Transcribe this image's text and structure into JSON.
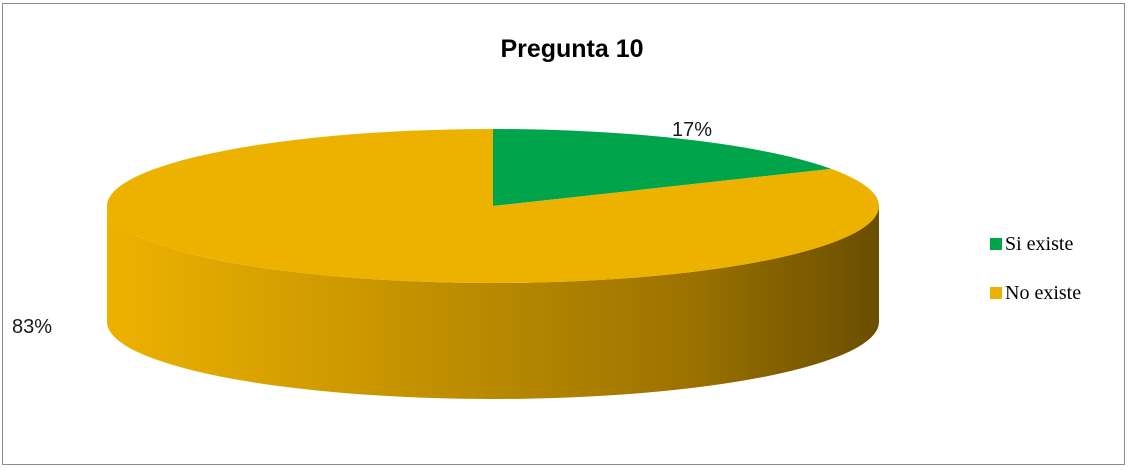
{
  "chart_data": {
    "type": "pie",
    "title": "Pregunta 10",
    "categories": [
      "Si existe",
      "No existe"
    ],
    "values": [
      17,
      83
    ],
    "data_labels": [
      "17%",
      "83%"
    ],
    "legend_position": "right",
    "colors": [
      "#00A44A",
      "#EDB200"
    ],
    "style": "3d"
  }
}
